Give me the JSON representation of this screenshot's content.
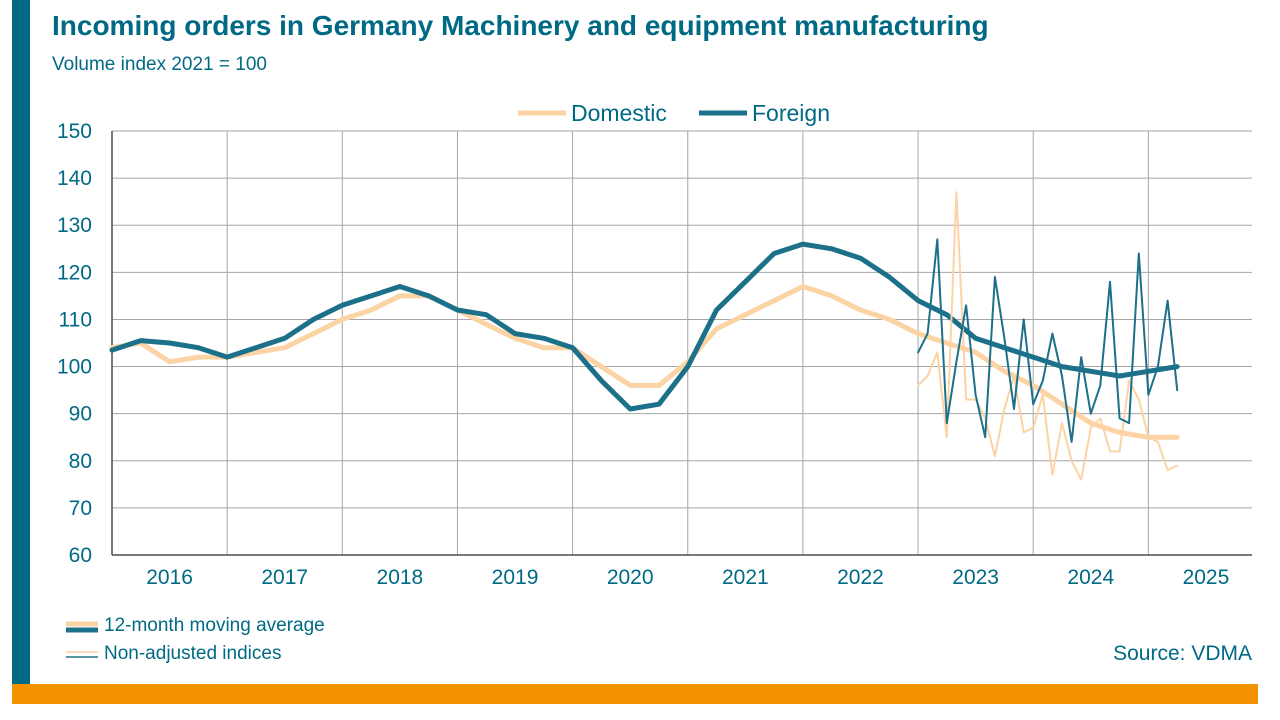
{
  "title": "Incoming orders in Germany Machinery and equipment manufacturing",
  "subtitle": "Volume index 2021 = 100",
  "notes": {
    "moving_average": "12-month moving average",
    "non_adjusted": "Non-adjusted indices"
  },
  "source": "Source: VDMA",
  "colors": {
    "domestic": "#fcd3a5",
    "foreign": "#1c7089",
    "grid": "#a6a6a6",
    "text": "#006a85",
    "accent_bar": "#f39200"
  },
  "chart_data": {
    "type": "line",
    "title": "Incoming orders in Germany Machinery and equipment manufacturing",
    "subtitle": "Volume index 2021 = 100",
    "xlabel": "",
    "ylabel": "",
    "ylim": [
      60,
      150
    ],
    "yticks": [
      60,
      70,
      80,
      90,
      100,
      110,
      120,
      130,
      140,
      150
    ],
    "x_categories": [
      "2016",
      "2017",
      "2018",
      "2019",
      "2020",
      "2021",
      "2022",
      "2023",
      "2024",
      "2025"
    ],
    "x_range": [
      2016.0,
      2025.9
    ],
    "grid": true,
    "legend_position": "top-center",
    "series": [
      {
        "name": "Domestic",
        "kind": "12-month moving average",
        "x": [
          2016.0,
          2016.25,
          2016.5,
          2016.75,
          2017.0,
          2017.25,
          2017.5,
          2017.75,
          2018.0,
          2018.25,
          2018.5,
          2018.75,
          2019.0,
          2019.25,
          2019.5,
          2019.75,
          2020.0,
          2020.25,
          2020.5,
          2020.75,
          2021.0,
          2021.25,
          2021.5,
          2021.75,
          2022.0,
          2022.25,
          2022.5,
          2022.75,
          2023.0,
          2023.25,
          2023.5,
          2023.75,
          2024.0,
          2024.25,
          2024.5,
          2024.75,
          2025.0,
          2025.25
        ],
        "values": [
          104,
          105,
          101,
          102,
          102,
          103,
          104,
          107,
          110,
          112,
          115,
          115,
          112,
          109,
          106,
          104,
          104,
          100,
          96,
          96,
          101,
          108,
          111,
          114,
          117,
          115,
          112,
          110,
          107,
          105,
          103,
          99,
          96,
          92,
          88,
          86,
          85,
          85
        ]
      },
      {
        "name": "Foreign",
        "kind": "12-month moving average",
        "x": [
          2016.0,
          2016.25,
          2016.5,
          2016.75,
          2017.0,
          2017.25,
          2017.5,
          2017.75,
          2018.0,
          2018.25,
          2018.5,
          2018.75,
          2019.0,
          2019.25,
          2019.5,
          2019.75,
          2020.0,
          2020.25,
          2020.5,
          2020.75,
          2021.0,
          2021.25,
          2021.5,
          2021.75,
          2022.0,
          2022.25,
          2022.5,
          2022.75,
          2023.0,
          2023.25,
          2023.5,
          2023.75,
          2024.0,
          2024.25,
          2024.5,
          2024.75,
          2025.0,
          2025.25
        ],
        "values": [
          103.5,
          105.5,
          105,
          104,
          102,
          104,
          106,
          110,
          113,
          115,
          117,
          115,
          112,
          111,
          107,
          106,
          104,
          97,
          91,
          92,
          100,
          112,
          118,
          124,
          126,
          125,
          123,
          119,
          114,
          111,
          106,
          104,
          102,
          100,
          99,
          98,
          99,
          100
        ]
      },
      {
        "name": "Domestic",
        "kind": "Non-adjusted indices",
        "x": [
          2023.0,
          2023.083,
          2023.167,
          2023.25,
          2023.333,
          2023.417,
          2023.5,
          2023.583,
          2023.667,
          2023.75,
          2023.833,
          2023.917,
          2024.0,
          2024.083,
          2024.167,
          2024.25,
          2024.333,
          2024.417,
          2024.5,
          2024.583,
          2024.667,
          2024.75,
          2024.833,
          2024.917,
          2025.0,
          2025.083,
          2025.167,
          2025.25
        ],
        "values": [
          96,
          98,
          103,
          85,
          137,
          93,
          93,
          89,
          81,
          91,
          98,
          86,
          87,
          94,
          77,
          88,
          80,
          76,
          87,
          89,
          82,
          82,
          97,
          93,
          85,
          84,
          78,
          79
        ]
      },
      {
        "name": "Foreign",
        "kind": "Non-adjusted indices",
        "x": [
          2023.0,
          2023.083,
          2023.167,
          2023.25,
          2023.333,
          2023.417,
          2023.5,
          2023.583,
          2023.667,
          2023.75,
          2023.833,
          2023.917,
          2024.0,
          2024.083,
          2024.167,
          2024.25,
          2024.333,
          2024.417,
          2024.5,
          2024.583,
          2024.667,
          2024.75,
          2024.833,
          2024.917,
          2025.0,
          2025.083,
          2025.167,
          2025.25
        ],
        "values": [
          103,
          107,
          127,
          88,
          101,
          113,
          94,
          85,
          119,
          106,
          91,
          110,
          92,
          97,
          107,
          98,
          84,
          102,
          90,
          96,
          118,
          89,
          88,
          124,
          94,
          100,
          114,
          95
        ]
      }
    ]
  }
}
